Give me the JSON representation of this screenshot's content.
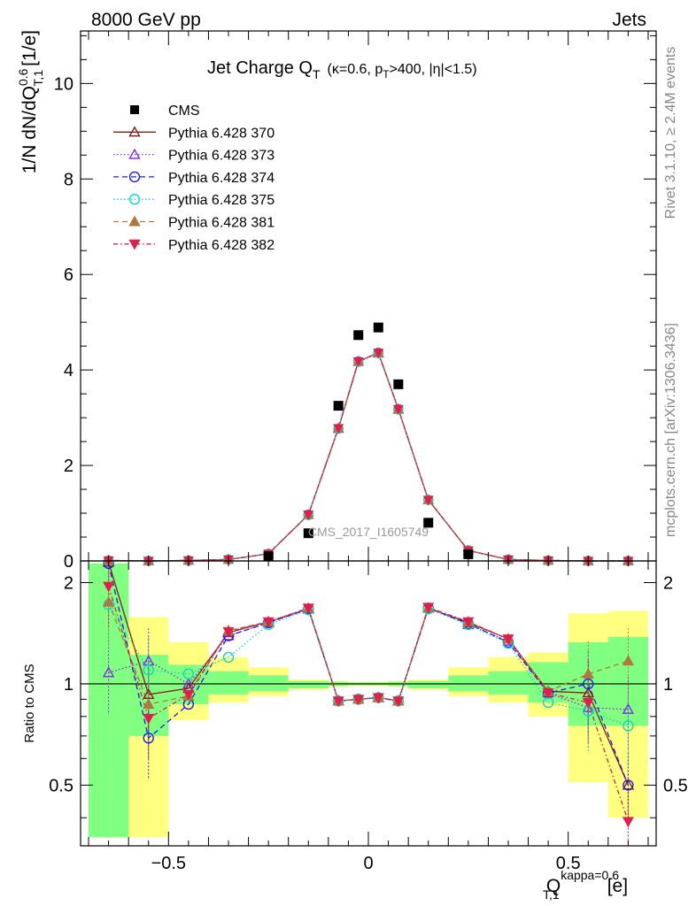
{
  "header": {
    "energy_label": "8000 GeV pp",
    "process_label": "Jets",
    "rivet_label": "Rivet 3.1.10, ≥ 2.4M events",
    "site_label": "mcplots.cern.ch [arXiv:1306.3436]",
    "watermark": "CMS_2017_I1605749"
  },
  "chart_data": [
    {
      "type": "scatter",
      "panel": "main",
      "title": "Jet Charge Q",
      "title_sub": "T",
      "title_suffix": "(κ=0.6, p",
      "title_suffix_sub": "T",
      "title_suffix_end": ">400, |η|<1.5)",
      "ylabel": "1/N dN/dQ",
      "ylabel_sup": "0.6",
      "ylabel_sub": "T,1",
      "ylabel_unit": "[1/e]",
      "xlim": [
        -0.72,
        0.72
      ],
      "ylim": [
        0,
        11.1
      ],
      "yticks": [
        "0",
        "2",
        "4",
        "6",
        "8",
        "10"
      ],
      "x": [
        -0.65,
        -0.55,
        -0.45,
        -0.35,
        -0.25,
        -0.15,
        -0.075,
        -0.025,
        0.025,
        0.075,
        0.15,
        0.25,
        0.35,
        0.45,
        0.55,
        0.65
      ],
      "cms": [
        0.0,
        0.0,
        0.01,
        0.02,
        0.1,
        0.58,
        3.25,
        4.73,
        4.89,
        3.7,
        0.8,
        0.14,
        0.02,
        0.01,
        0.0,
        0.0
      ],
      "series": [
        {
          "name": "Pythia 6.428 370",
          "color": "#8b1a1a",
          "dash": "",
          "marker": "triangle-open",
          "values": [
            0.01,
            0.0,
            0.01,
            0.03,
            0.15,
            0.97,
            2.78,
            4.18,
            4.36,
            3.18,
            1.28,
            0.22,
            0.03,
            0.01,
            0.0,
            0.0
          ]
        },
        {
          "name": "Pythia 6.428 373",
          "color": "#8a2be2",
          "dash": "1.5,2.5",
          "marker": "triangle-open",
          "values": [
            0.01,
            0.0,
            0.01,
            0.03,
            0.15,
            0.97,
            2.77,
            4.17,
            4.35,
            3.17,
            1.28,
            0.22,
            0.03,
            0.01,
            0.0,
            0.0
          ]
        },
        {
          "name": "Pythia 6.428 374",
          "color": "#1e1ee6",
          "dash": "6,4",
          "marker": "circle-open",
          "values": [
            0.01,
            0.0,
            0.01,
            0.03,
            0.15,
            0.97,
            2.77,
            4.18,
            4.36,
            3.18,
            1.28,
            0.22,
            0.03,
            0.01,
            0.0,
            0.0
          ]
        },
        {
          "name": "Pythia 6.428 375",
          "color": "#10d8c0",
          "dash": "1.5,2.5",
          "marker": "circle-open",
          "values": [
            0.01,
            0.0,
            0.01,
            0.03,
            0.15,
            0.96,
            2.77,
            4.17,
            4.35,
            3.17,
            1.28,
            0.22,
            0.03,
            0.01,
            0.0,
            0.0
          ]
        },
        {
          "name": "Pythia 6.428 381",
          "color": "#b07840",
          "dash": "6,4",
          "marker": "triangle-filled",
          "values": [
            0.01,
            0.0,
            0.01,
            0.03,
            0.15,
            0.97,
            2.78,
            4.18,
            4.36,
            3.18,
            1.28,
            0.22,
            0.03,
            0.01,
            0.0,
            0.0
          ]
        },
        {
          "name": "Pythia 6.428 382",
          "color": "#e0204a",
          "dash": "5,3,1.5,3",
          "marker": "triangledown-filled",
          "values": [
            0.01,
            0.0,
            0.01,
            0.03,
            0.15,
            0.97,
            2.78,
            4.18,
            4.36,
            3.18,
            1.28,
            0.22,
            0.03,
            0.01,
            0.0,
            0.0
          ]
        }
      ],
      "legend_entries": [
        {
          "label": "CMS",
          "marker": "square-filled",
          "color": "#000000",
          "dash": ""
        },
        {
          "label": "Pythia 6.428 370",
          "marker": "triangle-open",
          "color": "#8b1a1a",
          "dash": ""
        },
        {
          "label": "Pythia 6.428 373",
          "marker": "triangle-open",
          "color": "#8a2be2",
          "dash": "1.5,2.5"
        },
        {
          "label": "Pythia 6.428 374",
          "marker": "circle-open",
          "color": "#1e1ee6",
          "dash": "6,4"
        },
        {
          "label": "Pythia 6.428 375",
          "marker": "circle-open",
          "color": "#10d8c0",
          "dash": "1.5,2.5"
        },
        {
          "label": "Pythia 6.428 381",
          "marker": "triangle-filled",
          "color": "#b07840",
          "dash": "6,4"
        },
        {
          "label": "Pythia 6.428 382",
          "marker": "triangledown-filled",
          "color": "#e0204a",
          "dash": "5,3,1.5,3"
        }
      ],
      "legend_placement": "top-left"
    },
    {
      "type": "scatter",
      "panel": "ratio",
      "ylabel": "Ratio to CMS",
      "ylim": [
        0.33,
        2.32
      ],
      "log_y": true,
      "yticks": [
        "0.5",
        "1",
        "2"
      ],
      "xlabel": "Q",
      "xlabel_sup": "kappa=0.6",
      "xlabel_sub": "T,1",
      "xlabel_unit": "[e]",
      "xlim": [
        -0.72,
        0.72
      ],
      "xticks": [
        "−0.5",
        "0",
        "0.5"
      ],
      "x_edges": [
        -0.7,
        -0.6,
        -0.5,
        -0.4,
        -0.3,
        -0.2,
        -0.1,
        -0.05,
        0.0,
        0.05,
        0.1,
        0.2,
        0.3,
        0.4,
        0.5,
        0.6,
        0.7
      ],
      "band_green": [
        [
          0.35,
          2.28
        ],
        [
          0.7,
          1.22
        ],
        [
          0.87,
          1.14
        ],
        [
          0.93,
          1.09
        ],
        [
          0.95,
          1.06
        ],
        [
          0.97,
          1.02
        ],
        [
          0.985,
          1.015
        ],
        [
          0.99,
          1.01
        ],
        [
          0.99,
          1.01
        ],
        [
          0.985,
          1.015
        ],
        [
          0.97,
          1.02
        ],
        [
          0.95,
          1.06
        ],
        [
          0.93,
          1.09
        ],
        [
          0.88,
          1.16
        ],
        [
          0.75,
          1.33
        ],
        [
          0.75,
          1.38
        ]
      ],
      "band_yellow": [
        [
          0.35,
          2.28
        ],
        [
          0.35,
          1.58
        ],
        [
          0.78,
          1.33
        ],
        [
          0.88,
          1.2
        ],
        [
          0.92,
          1.12
        ],
        [
          0.96,
          1.03
        ],
        [
          0.98,
          1.02
        ],
        [
          0.985,
          1.015
        ],
        [
          0.985,
          1.015
        ],
        [
          0.98,
          1.02
        ],
        [
          0.96,
          1.03
        ],
        [
          0.92,
          1.12
        ],
        [
          0.88,
          1.2
        ],
        [
          0.8,
          1.24
        ],
        [
          0.51,
          1.62
        ],
        [
          0.4,
          1.65
        ]
      ],
      "series": [
        {
          "name": "Pythia 6.428 370",
          "values": [
            2.3,
            0.93,
            0.97,
            1.42,
            1.53,
            1.67,
            0.89,
            0.9,
            0.91,
            0.89,
            1.68,
            1.52,
            1.36,
            0.95,
            0.94,
            0.5
          ]
        },
        {
          "name": "Pythia 6.428 373",
          "values": [
            1.08,
            1.17,
            1.0,
            1.39,
            1.52,
            1.67,
            0.89,
            0.9,
            0.91,
            0.89,
            1.68,
            1.5,
            1.34,
            0.94,
            0.85,
            0.84
          ]
        },
        {
          "name": "Pythia 6.428 374",
          "values": [
            2.28,
            0.69,
            0.87,
            1.39,
            1.52,
            1.67,
            0.89,
            0.9,
            0.91,
            0.89,
            1.68,
            1.51,
            1.33,
            0.94,
            1.0,
            0.5
          ]
        },
        {
          "name": "Pythia 6.428 375",
          "values": [
            1.72,
            1.1,
            1.07,
            1.2,
            1.5,
            1.66,
            0.89,
            0.9,
            0.91,
            0.89,
            1.67,
            1.5,
            1.32,
            0.88,
            0.83,
            0.75
          ]
        },
        {
          "name": "Pythia 6.428 381",
          "values": [
            1.75,
            0.87,
            0.92,
            1.44,
            1.53,
            1.68,
            0.89,
            0.9,
            0.91,
            0.89,
            1.68,
            1.53,
            1.36,
            0.95,
            1.07,
            1.17
          ]
        },
        {
          "name": "Pythia 6.428 382",
          "values": [
            1.95,
            0.79,
            0.93,
            1.43,
            1.53,
            1.68,
            0.89,
            0.9,
            0.91,
            0.89,
            1.69,
            1.53,
            1.36,
            0.94,
            0.88,
            0.39
          ]
        }
      ]
    }
  ]
}
